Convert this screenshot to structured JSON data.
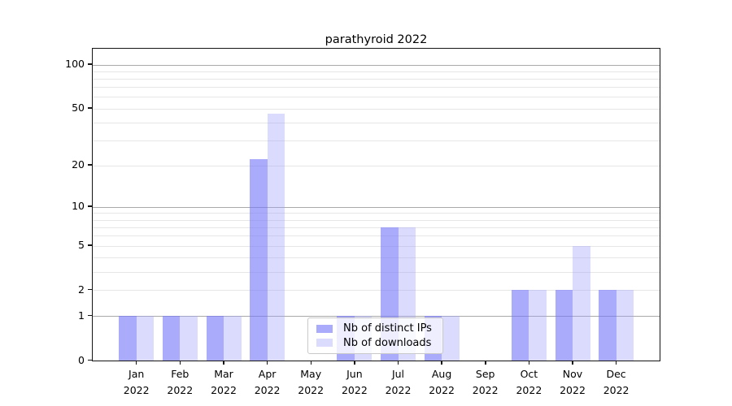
{
  "title": "parathyroid 2022",
  "legend": {
    "items": [
      {
        "label": "Nb of distinct IPs"
      },
      {
        "label": "Nb of downloads"
      }
    ]
  },
  "colors": {
    "distinct_ips_bar": "rgba(120,120,250,0.62)",
    "downloads_bar": "rgba(160,160,250,0.38)",
    "major_grid": "#a9a9a9",
    "minor_grid": "#e6e6e6",
    "axis": "#141414",
    "legend_border": "#c9c9c9"
  },
  "chart_data": {
    "type": "bar",
    "title": "parathyroid 2022",
    "categories": [
      "Jan",
      "Feb",
      "Mar",
      "Apr",
      "May",
      "Jun",
      "Jul",
      "Aug",
      "Sep",
      "Oct",
      "Nov",
      "Dec"
    ],
    "year": "2022",
    "series": [
      {
        "name": "Nb of distinct IPs",
        "values": [
          1,
          1,
          1,
          22,
          0,
          1,
          7,
          1,
          0,
          2,
          2,
          2
        ]
      },
      {
        "name": "Nb of downloads",
        "values": [
          1,
          1,
          1,
          46,
          0,
          1,
          7,
          1,
          0,
          2,
          5,
          2
        ]
      }
    ],
    "yscale": "log1p",
    "ylim": [
      0,
      120
    ],
    "yticks": [
      0,
      1,
      2,
      5,
      10,
      20,
      50,
      100
    ],
    "major_gridlines": [
      1,
      10,
      100
    ],
    "minor_gridlines": [
      2,
      3,
      4,
      5,
      6,
      7,
      8,
      9,
      20,
      30,
      40,
      50,
      60,
      70,
      80,
      90
    ],
    "grid": true,
    "legend_position": "lower center",
    "xlabel": "",
    "ylabel": ""
  }
}
